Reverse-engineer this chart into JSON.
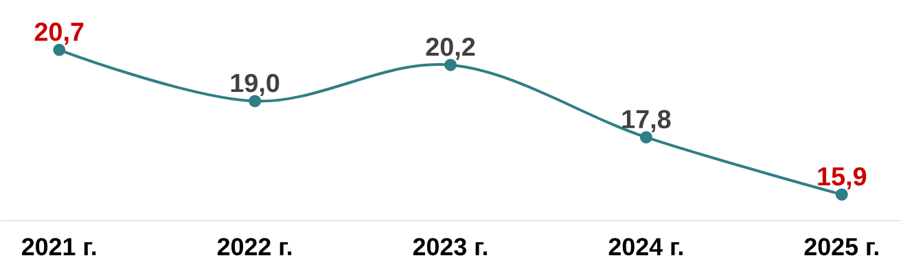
{
  "chart_data": {
    "type": "line",
    "categories": [
      "2021 г.",
      "2022 г.",
      "2023 г.",
      "2024 г.",
      "2025 г."
    ],
    "series": [
      {
        "color": "#2e7f86",
        "values": [
          20.7,
          19.0,
          20.2,
          17.8,
          15.9
        ],
        "value_labels": [
          "20,7",
          "19,0",
          "20,2",
          "17,8",
          "15,9"
        ]
      }
    ],
    "marker": "circle",
    "grid": false,
    "legend": false
  }
}
